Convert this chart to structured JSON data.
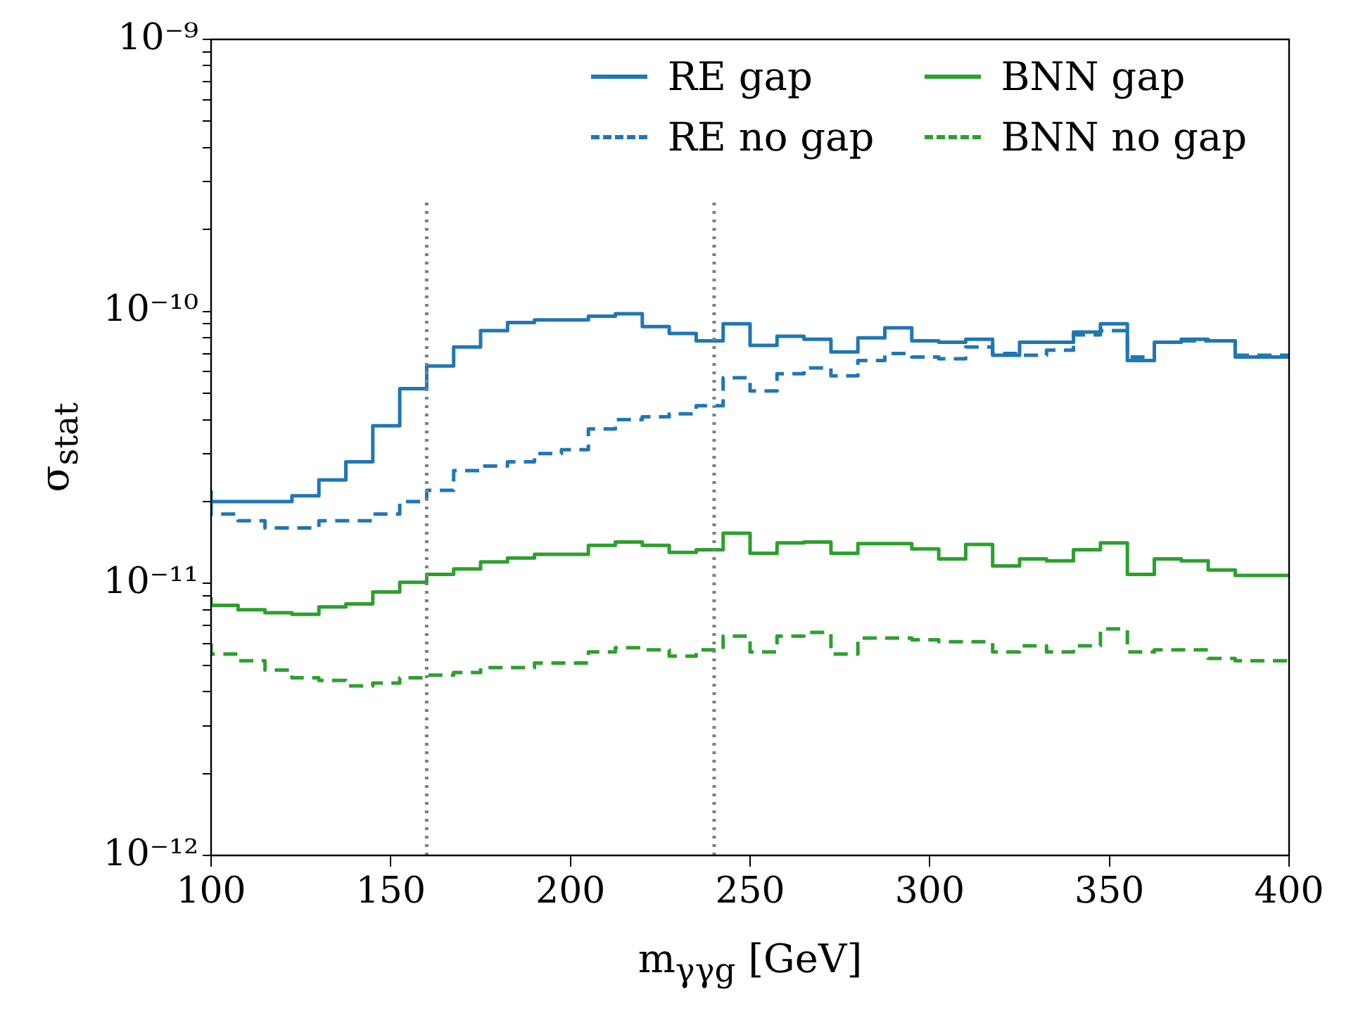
{
  "chart_data": {
    "type": "step",
    "xlabel": "m$_{γγg}$ [GeV]",
    "ylabel": "σ$_{stat}$",
    "x": [
      100,
      107.5,
      115,
      122.5,
      130,
      137.5,
      145,
      152.5,
      160,
      167.5,
      175,
      182.5,
      190,
      197.5,
      205,
      212.5,
      220,
      227.5,
      235,
      242.5,
      250,
      257.5,
      265,
      272.5,
      280,
      287.5,
      295,
      302.5,
      310,
      317.5,
      325,
      332.5,
      340,
      347.5,
      355,
      362.5,
      370,
      377.5,
      385,
      392.5,
      400
    ],
    "series": [
      {
        "name": "RE gap",
        "color": "#1f77b4",
        "line_style": "solid",
        "values": [
          2.2e-11,
          2e-11,
          2e-11,
          2e-11,
          2.1e-11,
          2.4e-11,
          2.8e-11,
          3.8e-11,
          5.2e-11,
          6.3e-11,
          7.4e-11,
          8.5e-11,
          9.1e-11,
          9.3e-11,
          9.3e-11,
          9.6e-11,
          9.8e-11,
          8.8e-11,
          8.3e-11,
          7.8e-11,
          9e-11,
          7.5e-11,
          8.1e-11,
          7.9e-11,
          7.1e-11,
          8e-11,
          8.7e-11,
          7.8e-11,
          7.7e-11,
          7.9e-11,
          6.9e-11,
          7.7e-11,
          7.7e-11,
          8.4e-11,
          9e-11,
          6.6e-11,
          7.7e-11,
          7.9e-11,
          7.8e-11,
          6.8e-11,
          6.8e-11
        ]
      },
      {
        "name": "RE no gap",
        "color": "#1f77b4",
        "line_style": "dashed",
        "values": [
          2e-11,
          1.8e-11,
          1.7e-11,
          1.6e-11,
          1.6e-11,
          1.7e-11,
          1.7e-11,
          1.8e-11,
          2e-11,
          2.2e-11,
          2.6e-11,
          2.7e-11,
          2.8e-11,
          3e-11,
          3.1e-11,
          3.7e-11,
          4e-11,
          4.1e-11,
          4.2e-11,
          4.5e-11,
          5.7e-11,
          5.1e-11,
          5.9e-11,
          6.2e-11,
          5.8e-11,
          6.6e-11,
          7e-11,
          6.8e-11,
          6.7e-11,
          7.4e-11,
          7e-11,
          6.9e-11,
          7.2e-11,
          8.2e-11,
          8.5e-11,
          6.8e-11,
          7.7e-11,
          7.8e-11,
          7.8e-11,
          6.9e-11,
          6.9e-11
        ]
      },
      {
        "name": "BNN gap",
        "color": "#2ca02c",
        "line_style": "solid",
        "values": [
          8.9e-12,
          8.3e-12,
          8e-12,
          7.8e-12,
          7.7e-12,
          8.2e-12,
          8.4e-12,
          9.3e-12,
          1.01e-11,
          1.08e-11,
          1.13e-11,
          1.2e-11,
          1.24e-11,
          1.28e-11,
          1.28e-11,
          1.38e-11,
          1.42e-11,
          1.38e-11,
          1.3e-11,
          1.33e-11,
          1.53e-11,
          1.29e-11,
          1.41e-11,
          1.42e-11,
          1.29e-11,
          1.4e-11,
          1.4e-11,
          1.34e-11,
          1.23e-11,
          1.39e-11,
          1.16e-11,
          1.23e-11,
          1.21e-11,
          1.33e-11,
          1.41e-11,
          1.08e-11,
          1.23e-11,
          1.21e-11,
          1.12e-11,
          1.07e-11,
          1.07e-11
        ]
      },
      {
        "name": "BNN no gap",
        "color": "#2ca02c",
        "line_style": "dashed",
        "values": [
          6e-12,
          5.5e-12,
          5.2e-12,
          4.8e-12,
          4.5e-12,
          4.4e-12,
          4.2e-12,
          4.3e-12,
          4.5e-12,
          4.6e-12,
          4.7e-12,
          4.9e-12,
          4.9e-12,
          5.1e-12,
          5.1e-12,
          5.6e-12,
          5.8e-12,
          5.7e-12,
          5.4e-12,
          5.7e-12,
          6.4e-12,
          5.6e-12,
          6.4e-12,
          6.6e-12,
          5.5e-12,
          6.3e-12,
          6.3e-12,
          6.2e-12,
          6.1e-12,
          6.1e-12,
          5.6e-12,
          5.9e-12,
          5.6e-12,
          5.9e-12,
          6.8e-12,
          5.6e-12,
          5.7e-12,
          5.7e-12,
          5.3e-12,
          5.2e-12,
          5.2e-12
        ]
      }
    ],
    "xlim": [
      100,
      400
    ],
    "xticks": [
      100,
      150,
      200,
      250,
      300,
      350,
      400
    ],
    "ylim": [
      1e-12,
      1e-09
    ],
    "yticks": [
      {
        "value": 1e-12,
        "label": "10⁻¹²"
      },
      {
        "value": 2e-12,
        "label": null
      },
      {
        "value": 3e-12,
        "label": null
      },
      {
        "value": 4e-12,
        "label": null
      },
      {
        "value": 5e-12,
        "label": null
      },
      {
        "value": 6e-12,
        "label": null
      },
      {
        "value": 7e-12,
        "label": null
      },
      {
        "value": 8e-12,
        "label": null
      },
      {
        "value": 9e-12,
        "label": null
      },
      {
        "value": 1e-11,
        "label": "10⁻¹¹"
      },
      {
        "value": 2e-11,
        "label": null
      },
      {
        "value": 3e-11,
        "label": null
      },
      {
        "value": 4e-11,
        "label": null
      },
      {
        "value": 5e-11,
        "label": null
      },
      {
        "value": 6e-11,
        "label": null
      },
      {
        "value": 7e-11,
        "label": null
      },
      {
        "value": 8e-11,
        "label": null
      },
      {
        "value": 9e-11,
        "label": null
      },
      {
        "value": 1e-10,
        "label": "10⁻¹⁰"
      },
      {
        "value": 2e-10,
        "label": null
      },
      {
        "value": 3e-10,
        "label": null
      },
      {
        "value": 4e-10,
        "label": null
      },
      {
        "value": 5e-10,
        "label": null
      },
      {
        "value": 6e-10,
        "label": null
      },
      {
        "value": 7e-10,
        "label": null
      },
      {
        "value": 8e-10,
        "label": null
      },
      {
        "value": 9e-10,
        "label": null
      },
      {
        "value": 1e-09,
        "label": "10⁻⁹"
      }
    ],
    "log": "y",
    "grid": false,
    "legend": "top right",
    "ref_lines": [
      {
        "axis": "x",
        "value": 160,
        "color": "#808080",
        "line_style": "dotted"
      },
      {
        "axis": "x",
        "value": 240,
        "color": "#808080",
        "line_style": "dotted"
      }
    ]
  }
}
